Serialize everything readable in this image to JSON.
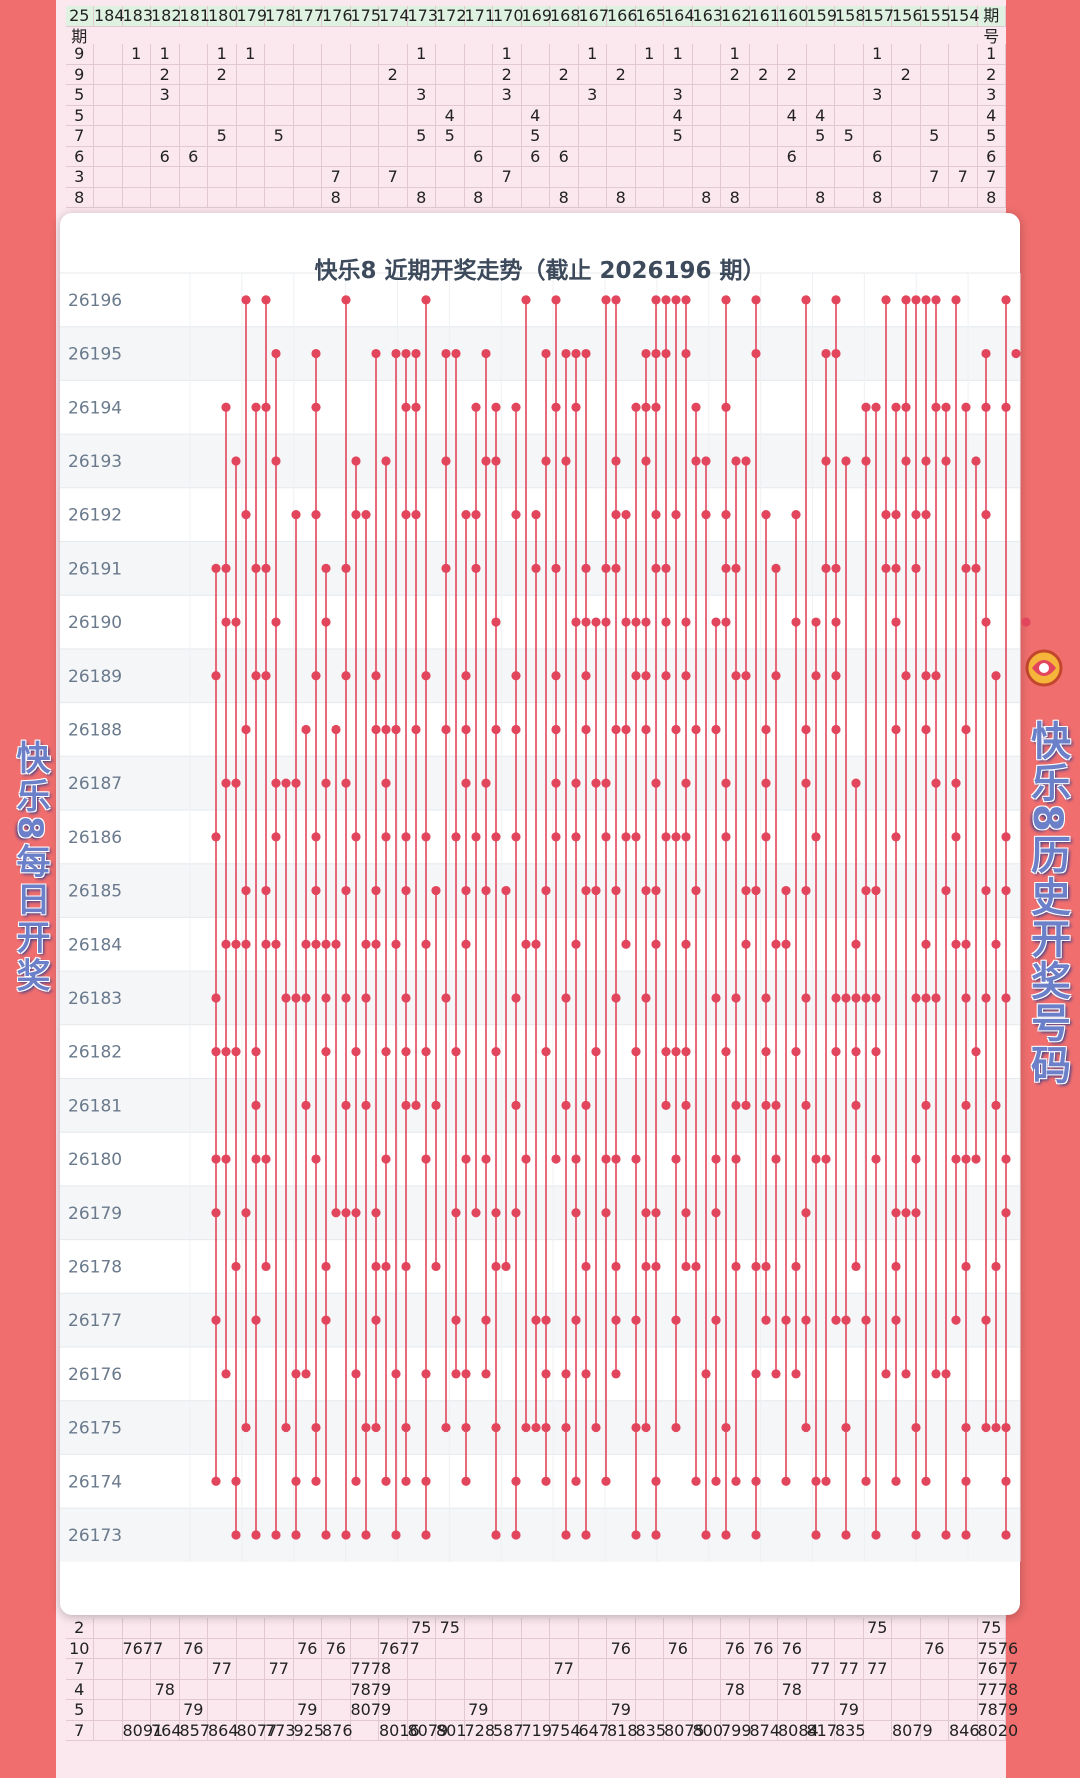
{
  "side_titles": {
    "left": "快乐8每日开奖",
    "right": "快乐8历史开奖号码"
  },
  "logo_icon": "kl8-logo-icon",
  "colors": {
    "line": "#e2465c",
    "dot": "#e2465c",
    "alt_row": "#f4f6f8",
    "card": "#ffffff"
  },
  "background_sheet": {
    "header": [
      "期号",
      "154",
      "155",
      "156",
      "157",
      "158",
      "159",
      "160",
      "161",
      "162",
      "163",
      "164",
      "165",
      "166",
      "167",
      "168",
      "169",
      "170",
      "171",
      "172",
      "173",
      "174",
      "175",
      "176",
      "177",
      "178",
      "179",
      "180",
      "181",
      "182",
      "183",
      "184",
      "25期"
    ],
    "top_rows": [
      [
        "1",
        "",
        "",
        "",
        "1",
        "",
        "",
        "",
        "",
        "1",
        "",
        "1",
        "1",
        "",
        "1",
        "",
        "",
        "1",
        "",
        "",
        "1",
        "",
        "",
        "",
        "",
        "",
        "1",
        "1",
        "",
        "1",
        "1",
        "",
        "9"
      ],
      [
        "2",
        "",
        "",
        "2",
        "",
        "",
        "",
        "2",
        "2",
        "2",
        "",
        "",
        "",
        "2",
        "",
        "2",
        "",
        "2",
        "",
        "",
        "",
        "2",
        "",
        "",
        "",
        "",
        "",
        "2",
        "",
        "2",
        "",
        "",
        "9"
      ],
      [
        "3",
        "",
        "",
        "",
        "3",
        "",
        "",
        "",
        "",
        "",
        "",
        "3",
        "",
        "",
        "3",
        "",
        "",
        "3",
        "",
        "",
        "3",
        "",
        "",
        "",
        "",
        "",
        "",
        "",
        "",
        "3",
        "",
        "",
        "5"
      ],
      [
        "4",
        "",
        "",
        "",
        "",
        "",
        "4",
        "4",
        "",
        "",
        "",
        "4",
        "",
        "",
        "",
        "",
        "4",
        "",
        "",
        "4",
        "",
        "",
        "",
        "",
        "",
        "",
        "",
        "",
        "",
        "",
        "",
        "",
        "5"
      ],
      [
        "5",
        "",
        "5",
        "",
        "",
        "5",
        "5",
        "",
        "",
        "",
        "",
        "5",
        "",
        "",
        "",
        "",
        "5",
        "",
        "",
        "5",
        "5",
        "",
        "",
        "",
        "",
        "5",
        "",
        "5",
        "",
        "",
        "",
        "",
        "7"
      ],
      [
        "6",
        "",
        "",
        "",
        "6",
        "",
        "",
        "6",
        "",
        "",
        "",
        "",
        "",
        "",
        "",
        "6",
        "6",
        "",
        "6",
        "",
        "",
        "",
        "",
        "",
        "",
        "",
        "",
        "",
        "6",
        "6",
        "",
        "",
        "6"
      ],
      [
        "7",
        "7",
        "7",
        "",
        "",
        "",
        "",
        "",
        "",
        "",
        "",
        "",
        "",
        "",
        "",
        "",
        "",
        "7",
        "",
        "",
        "",
        "7",
        "",
        "7",
        "",
        "",
        "",
        "",
        "",
        "",
        "",
        "",
        "3"
      ],
      [
        "8",
        "",
        "",
        "",
        "8",
        "",
        "8",
        "",
        "",
        "8",
        "8",
        "",
        "",
        "8",
        "",
        "8",
        "",
        "",
        "8",
        "",
        "8",
        "",
        "",
        "8",
        "",
        "",
        "",
        "",
        "",
        "",
        "",
        "",
        "8"
      ]
    ],
    "bottom_rows": [
      [
        "75",
        "",
        "",
        "",
        "75",
        "",
        "",
        "",
        "",
        "",
        "",
        "",
        "",
        "",
        "",
        "",
        "",
        "",
        "",
        "75",
        "75",
        "",
        "",
        "",
        "",
        "",
        "",
        "",
        "",
        "",
        "",
        "",
        "2"
      ],
      [
        "7576",
        "",
        "76",
        "",
        "",
        "",
        "",
        "76",
        "76",
        "76",
        "",
        "76",
        "",
        "76",
        "",
        "",
        "",
        "",
        "",
        "",
        "",
        "7677",
        "",
        "76",
        "76",
        "",
        "",
        "",
        "76",
        "",
        "7677",
        "",
        "10"
      ],
      [
        "7677",
        "",
        "",
        "",
        "77",
        "77",
        "77",
        "",
        "",
        "",
        "",
        "",
        "",
        "",
        "",
        "77",
        "",
        "",
        "",
        "",
        "",
        "",
        "7778",
        "",
        "",
        "77",
        "",
        "77",
        "",
        "",
        "",
        "",
        "7"
      ],
      [
        "7778",
        "",
        "",
        "",
        "",
        "",
        "",
        "78",
        "",
        "78",
        "",
        "",
        "",
        "",
        "",
        "",
        "",
        "",
        "",
        "",
        "",
        "",
        "7879",
        "",
        "",
        "",
        "",
        "",
        "",
        "78",
        "",
        "",
        "4"
      ],
      [
        "7879",
        "",
        "",
        "",
        "",
        "79",
        "",
        "",
        "",
        "",
        "",
        "",
        "",
        "79",
        "",
        "",
        "",
        "",
        "79",
        "",
        "",
        "",
        "8079",
        "",
        "79",
        "",
        "",
        "",
        "79",
        "",
        "",
        "",
        "5"
      ],
      [
        "8020",
        "846",
        "",
        "8079",
        "",
        "835",
        "817",
        "8084",
        "874",
        "799",
        "800",
        "8075",
        "835",
        "818",
        "647",
        "754",
        "719",
        "587",
        "728",
        "801",
        "8079",
        "8016",
        "",
        "876",
        "925",
        "773",
        "8077",
        "864",
        "857",
        "764",
        "8091",
        "",
        "7"
      ]
    ]
  },
  "chart_data": {
    "type": "scatter",
    "title": "快乐8 近期开奖走势（截止 2026196 期）",
    "x_domain": [
      1,
      80
    ],
    "y_categories": [
      "26196",
      "26195",
      "26194",
      "26193",
      "26192",
      "26191",
      "26190",
      "26189",
      "26188",
      "26187",
      "26186",
      "26185",
      "26184",
      "26183",
      "26182",
      "26181",
      "26180",
      "26179",
      "26178",
      "26177",
      "26176",
      "26175",
      "26174",
      "26173"
    ],
    "grid": true,
    "draws": [
      {
        "issue": "26196",
        "numbers": [
          4,
          6,
          14,
          22,
          32,
          35,
          40,
          41,
          45,
          46,
          47,
          48,
          52,
          55,
          60,
          63,
          68,
          70,
          71,
          72,
          73,
          75,
          80
        ]
      },
      {
        "issue": "26195",
        "numbers": [
          7,
          11,
          17,
          19,
          20,
          21,
          24,
          25,
          28,
          34,
          36,
          37,
          38,
          44,
          45,
          46,
          48,
          55,
          62,
          63,
          78,
          81
        ]
      },
      {
        "issue": "26194",
        "numbers": [
          2,
          5,
          6,
          11,
          20,
          21,
          27,
          29,
          31,
          35,
          37,
          43,
          44,
          45,
          49,
          52,
          66,
          67,
          69,
          70,
          73,
          74,
          76,
          78,
          80
        ]
      },
      {
        "issue": "26193",
        "numbers": [
          3,
          7,
          15,
          18,
          24,
          28,
          29,
          34,
          36,
          41,
          44,
          49,
          50,
          53,
          54,
          62,
          64,
          66,
          70,
          72,
          74,
          77
        ]
      },
      {
        "issue": "26192",
        "numbers": [
          4,
          9,
          11,
          15,
          16,
          20,
          21,
          26,
          27,
          31,
          33,
          41,
          42,
          45,
          47,
          50,
          52,
          56,
          59,
          68,
          69,
          71,
          72,
          78
        ]
      },
      {
        "issue": "26191",
        "numbers": [
          1,
          2,
          5,
          6,
          12,
          14,
          24,
          27,
          33,
          35,
          38,
          40,
          41,
          45,
          46,
          52,
          53,
          57,
          62,
          63,
          68,
          69,
          71,
          76,
          77
        ]
      },
      {
        "issue": "26190",
        "numbers": [
          2,
          3,
          7,
          12,
          29,
          37,
          38,
          39,
          40,
          42,
          43,
          44,
          46,
          48,
          51,
          52,
          59,
          61,
          63,
          69,
          78,
          82
        ]
      },
      {
        "issue": "26189",
        "numbers": [
          1,
          5,
          6,
          11,
          14,
          17,
          22,
          26,
          31,
          35,
          38,
          43,
          44,
          46,
          48,
          53,
          54,
          57,
          61,
          63,
          70,
          72,
          73,
          79
        ]
      },
      {
        "issue": "26188",
        "numbers": [
          4,
          10,
          13,
          17,
          18,
          19,
          21,
          24,
          26,
          29,
          31,
          35,
          38,
          41,
          42,
          44,
          47,
          49,
          51,
          56,
          60,
          63,
          69,
          72,
          76
        ]
      },
      {
        "issue": "26187",
        "numbers": [
          2,
          3,
          7,
          8,
          9,
          12,
          14,
          18,
          26,
          28,
          35,
          37,
          39,
          40,
          45,
          48,
          52,
          56,
          60,
          65,
          73,
          75
        ]
      },
      {
        "issue": "26186",
        "numbers": [
          1,
          7,
          11,
          15,
          18,
          20,
          22,
          25,
          27,
          29,
          31,
          35,
          37,
          40,
          42,
          43,
          46,
          47,
          48,
          52,
          56,
          61,
          69,
          75,
          80
        ]
      },
      {
        "issue": "26185",
        "numbers": [
          4,
          6,
          11,
          14,
          17,
          20,
          23,
          26,
          28,
          30,
          34,
          38,
          39,
          41,
          44,
          45,
          49,
          54,
          55,
          58,
          60,
          66,
          67,
          74,
          78,
          80
        ]
      },
      {
        "issue": "26184",
        "numbers": [
          2,
          3,
          4,
          6,
          7,
          10,
          11,
          12,
          13,
          16,
          17,
          19,
          22,
          26,
          32,
          33,
          37,
          42,
          45,
          48,
          54,
          57,
          58,
          65,
          72,
          75,
          76,
          79
        ]
      },
      {
        "issue": "26183",
        "numbers": [
          1,
          8,
          9,
          10,
          12,
          14,
          16,
          20,
          24,
          31,
          36,
          41,
          44,
          51,
          53,
          56,
          60,
          63,
          64,
          65,
          66,
          67,
          71,
          72,
          73,
          76,
          78,
          80
        ]
      },
      {
        "issue": "26182",
        "numbers": [
          1,
          2,
          3,
          5,
          12,
          15,
          18,
          20,
          22,
          25,
          29,
          34,
          39,
          43,
          46,
          47,
          48,
          52,
          56,
          59,
          63,
          65,
          67,
          77
        ]
      },
      {
        "issue": "26181",
        "numbers": [
          5,
          10,
          14,
          16,
          20,
          21,
          23,
          31,
          36,
          38,
          46,
          48,
          53,
          54,
          56,
          57,
          60,
          65,
          72,
          76,
          79
        ]
      },
      {
        "issue": "26180",
        "numbers": [
          1,
          2,
          5,
          6,
          11,
          18,
          22,
          26,
          28,
          32,
          35,
          37,
          40,
          41,
          43,
          47,
          51,
          53,
          57,
          61,
          62,
          67,
          71,
          75,
          76,
          77,
          80
        ]
      },
      {
        "issue": "26179",
        "numbers": [
          1,
          4,
          13,
          14,
          15,
          17,
          25,
          27,
          29,
          31,
          37,
          40,
          44,
          45,
          48,
          51,
          60,
          69,
          70,
          71,
          80
        ]
      },
      {
        "issue": "26178",
        "numbers": [
          3,
          6,
          12,
          17,
          18,
          20,
          23,
          29,
          30,
          38,
          41,
          44,
          45,
          48,
          49,
          53,
          55,
          56,
          59,
          65,
          69,
          76,
          79
        ]
      },
      {
        "issue": "26177",
        "numbers": [
          1,
          5,
          12,
          17,
          25,
          28,
          33,
          34,
          37,
          41,
          43,
          47,
          51,
          56,
          58,
          60,
          63,
          64,
          66,
          69,
          75,
          78
        ]
      },
      {
        "issue": "26176",
        "numbers": [
          2,
          9,
          10,
          15,
          19,
          22,
          25,
          26,
          28,
          34,
          36,
          38,
          41,
          50,
          55,
          57,
          59,
          68,
          70,
          73,
          74
        ]
      },
      {
        "issue": "26175",
        "numbers": [
          4,
          8,
          11,
          16,
          17,
          20,
          24,
          26,
          29,
          32,
          33,
          34,
          36,
          39,
          43,
          44,
          47,
          52,
          60,
          64,
          71,
          76,
          78,
          79,
          80
        ]
      },
      {
        "issue": "26174",
        "numbers": [
          1,
          3,
          9,
          11,
          15,
          18,
          20,
          22,
          26,
          31,
          34,
          37,
          40,
          45,
          49,
          51,
          53,
          55,
          58,
          61,
          62,
          66,
          69,
          72,
          76,
          80
        ]
      },
      {
        "issue": "26173",
        "numbers": [
          3,
          5,
          7,
          9,
          12,
          14,
          16,
          19,
          22,
          29,
          31,
          36,
          38,
          43,
          45,
          50,
          52,
          55,
          61,
          64,
          67,
          71,
          74,
          76,
          80
        ]
      }
    ]
  }
}
